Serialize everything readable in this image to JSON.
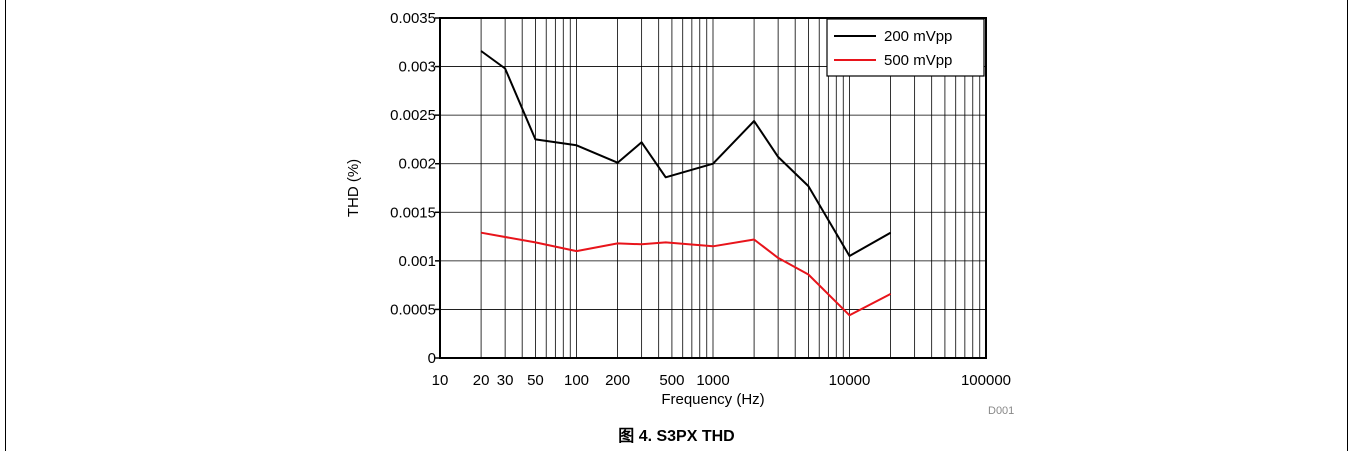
{
  "caption": "图 4. S3PX THD",
  "figure_code": "D001",
  "chart_data": {
    "type": "line",
    "title": "",
    "xlabel": "Frequency (Hz)",
    "ylabel": "THD (%)",
    "xscale": "log",
    "xlim": [
      10,
      100000
    ],
    "ylim": [
      0,
      0.0035
    ],
    "x_tick_labels": [
      {
        "value": 10,
        "label": "10"
      },
      {
        "value": 20,
        "label": "20"
      },
      {
        "value": 30,
        "label": "30"
      },
      {
        "value": 50,
        "label": "50"
      },
      {
        "value": 100,
        "label": "100"
      },
      {
        "value": 200,
        "label": "200"
      },
      {
        "value": 500,
        "label": "500"
      },
      {
        "value": 1000,
        "label": "1000"
      },
      {
        "value": 10000,
        "label": "10000"
      },
      {
        "value": 100000,
        "label": "100000"
      }
    ],
    "y_ticks": [
      {
        "value": 0,
        "label": "0"
      },
      {
        "value": 0.0005,
        "label": "0.0005"
      },
      {
        "value": 0.001,
        "label": "0.001"
      },
      {
        "value": 0.0015,
        "label": "0.0015"
      },
      {
        "value": 0.002,
        "label": "0.002"
      },
      {
        "value": 0.0025,
        "label": "0.0025"
      },
      {
        "value": 0.003,
        "label": "0.003"
      },
      {
        "value": 0.0035,
        "label": "0.0035"
      }
    ],
    "grid": true,
    "legend_position": "top-right",
    "series": [
      {
        "name": "200 mVpp",
        "color": "#000000",
        "points": [
          [
            20,
            0.00316
          ],
          [
            30,
            0.00298
          ],
          [
            50,
            0.00225
          ],
          [
            100,
            0.00219
          ],
          [
            200,
            0.00201
          ],
          [
            300,
            0.00222
          ],
          [
            450,
            0.00186
          ],
          [
            1000,
            0.002
          ],
          [
            2000,
            0.00244
          ],
          [
            3000,
            0.00207
          ],
          [
            5000,
            0.00177
          ],
          [
            10000,
            0.00105
          ],
          [
            20000,
            0.00129
          ]
        ]
      },
      {
        "name": "500 mVpp",
        "color": "#e8141b",
        "points": [
          [
            20,
            0.00129
          ],
          [
            50,
            0.00119
          ],
          [
            100,
            0.0011
          ],
          [
            200,
            0.00118
          ],
          [
            300,
            0.00117
          ],
          [
            450,
            0.00119
          ],
          [
            1000,
            0.00115
          ],
          [
            2000,
            0.00122
          ],
          [
            3000,
            0.00103
          ],
          [
            5000,
            0.00086
          ],
          [
            10000,
            0.00044
          ],
          [
            20000,
            0.00066
          ]
        ]
      }
    ]
  }
}
